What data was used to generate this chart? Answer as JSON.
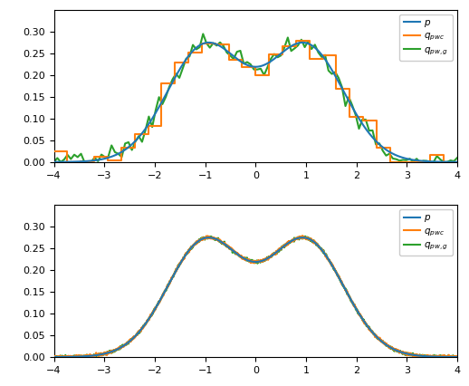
{
  "xlim": [
    -4,
    4
  ],
  "ylim": [
    0,
    0.35
  ],
  "yticks": [
    0.0,
    0.05,
    0.1,
    0.15,
    0.2,
    0.25,
    0.3
  ],
  "xticks": [
    -4,
    -3,
    -2,
    -1,
    0,
    1,
    2,
    3,
    4
  ],
  "color_p": "#1f77b4",
  "color_pwc": "#ff7f0e",
  "color_pwg": "#2ca02c",
  "legend_labels": [
    "$p$",
    "$q_{pwc}$",
    "$q_{pw,g}$"
  ],
  "lw_p": 1.5,
  "lw_pwc": 1.5,
  "lw_pwg": 1.5,
  "mu1": -1.0,
  "mu2": 1.0,
  "sigma": 0.75,
  "weight1": 0.5,
  "weight2": 0.5,
  "n_pwc_steps": 30,
  "noise_pwc_std": 0.015,
  "noise_pwg_std": 0.012,
  "noise_seed_pwc": 7,
  "noise_seed_pwg": 13
}
